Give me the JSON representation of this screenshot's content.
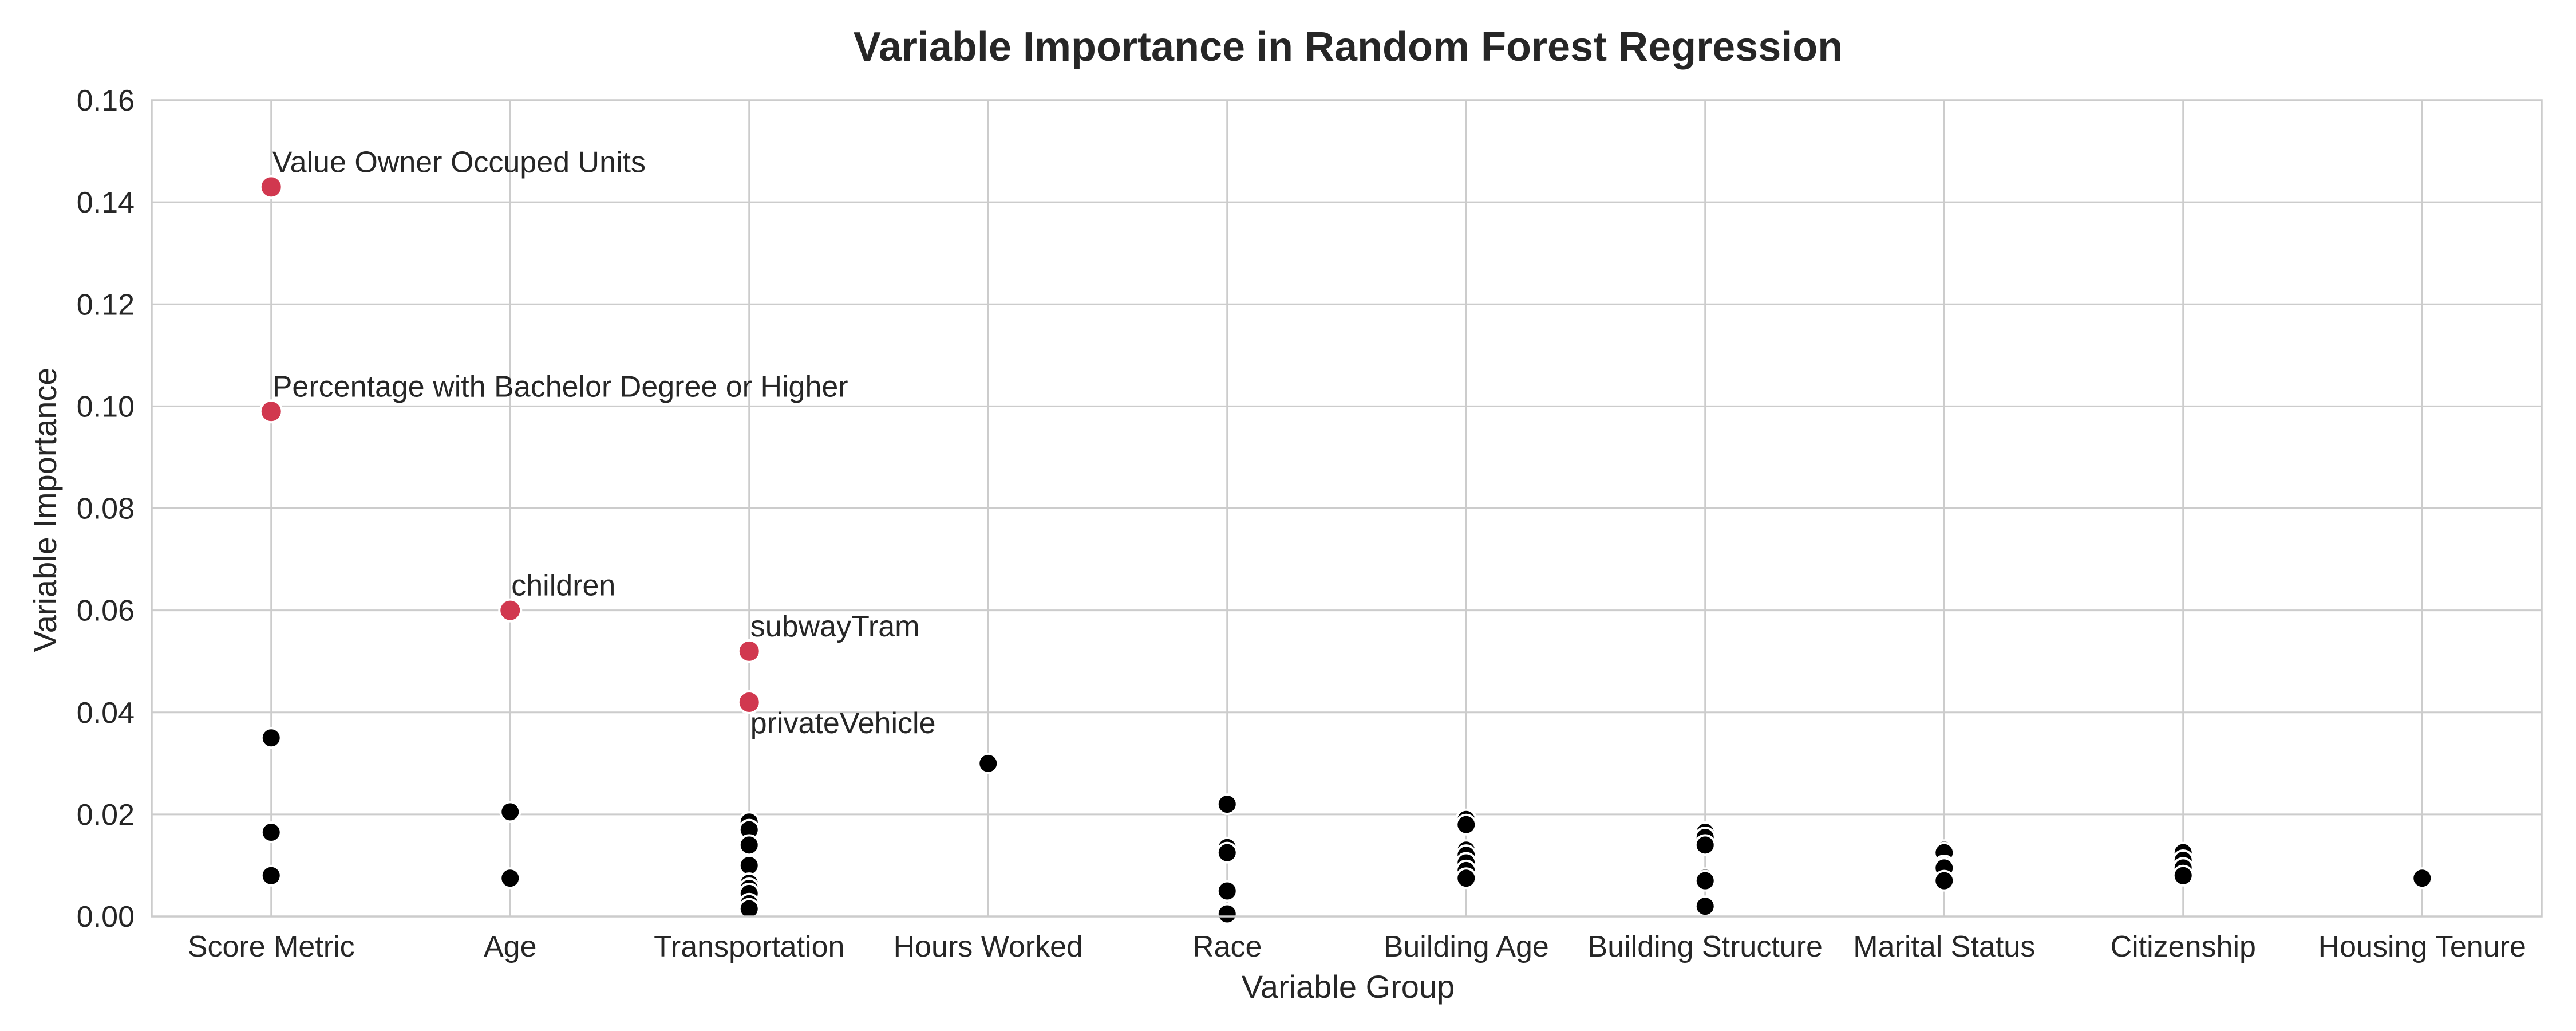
{
  "chart_data": {
    "type": "scatter",
    "title": "Variable Importance in Random Forest Regression",
    "xlabel": "Variable Group",
    "ylabel": "Variable Importance",
    "categories": [
      "Score Metric",
      "Age",
      "Transportation",
      "Hours Worked",
      "Race",
      "Building Age",
      "Building Structure",
      "Marital Status",
      "Citizenship",
      "Housing Tenure"
    ],
    "ylim": [
      0,
      0.16
    ],
    "yticks": [
      "0.00",
      "0.02",
      "0.04",
      "0.06",
      "0.08",
      "0.10",
      "0.12",
      "0.14",
      "0.16"
    ],
    "grid": true,
    "colors": {
      "highlight": "#d1384f",
      "normal": "#000000"
    },
    "highlighted": [
      {
        "category": "Score Metric",
        "y": 0.143,
        "label": "Value Owner Occuped Units"
      },
      {
        "category": "Score Metric",
        "y": 0.099,
        "label": "Percentage with Bachelor Degree or Higher"
      },
      {
        "category": "Age",
        "y": 0.06,
        "label": "children"
      },
      {
        "category": "Transportation",
        "y": 0.052,
        "label": "subwayTram"
      },
      {
        "category": "Transportation",
        "y": 0.042,
        "label": "privateVehicle"
      }
    ],
    "points": [
      {
        "category": "Score Metric",
        "values": [
          0.035,
          0.0165,
          0.008
        ]
      },
      {
        "category": "Age",
        "values": [
          0.0205,
          0.0075
        ]
      },
      {
        "category": "Transportation",
        "values": [
          0.0185,
          0.017,
          0.014,
          0.01,
          0.0065,
          0.0055,
          0.0045,
          0.0025,
          0.0015
        ]
      },
      {
        "category": "Hours Worked",
        "values": [
          0.03
        ]
      },
      {
        "category": "Race",
        "values": [
          0.022,
          0.0135,
          0.0125,
          0.005,
          0.0005
        ]
      },
      {
        "category": "Building Age",
        "values": [
          0.019,
          0.018,
          0.013,
          0.012,
          0.0105,
          0.009,
          0.0075
        ]
      },
      {
        "category": "Building Structure",
        "values": [
          0.0165,
          0.0155,
          0.014,
          0.0075,
          0.007,
          0.002
        ]
      },
      {
        "category": "Marital Status",
        "values": [
          0.013,
          0.0125,
          0.01,
          0.0095,
          0.007
        ]
      },
      {
        "category": "Citizenship",
        "values": [
          0.0125,
          0.011,
          0.0095,
          0.008
        ]
      },
      {
        "category": "Housing Tenure",
        "values": [
          0.0075
        ]
      }
    ]
  }
}
